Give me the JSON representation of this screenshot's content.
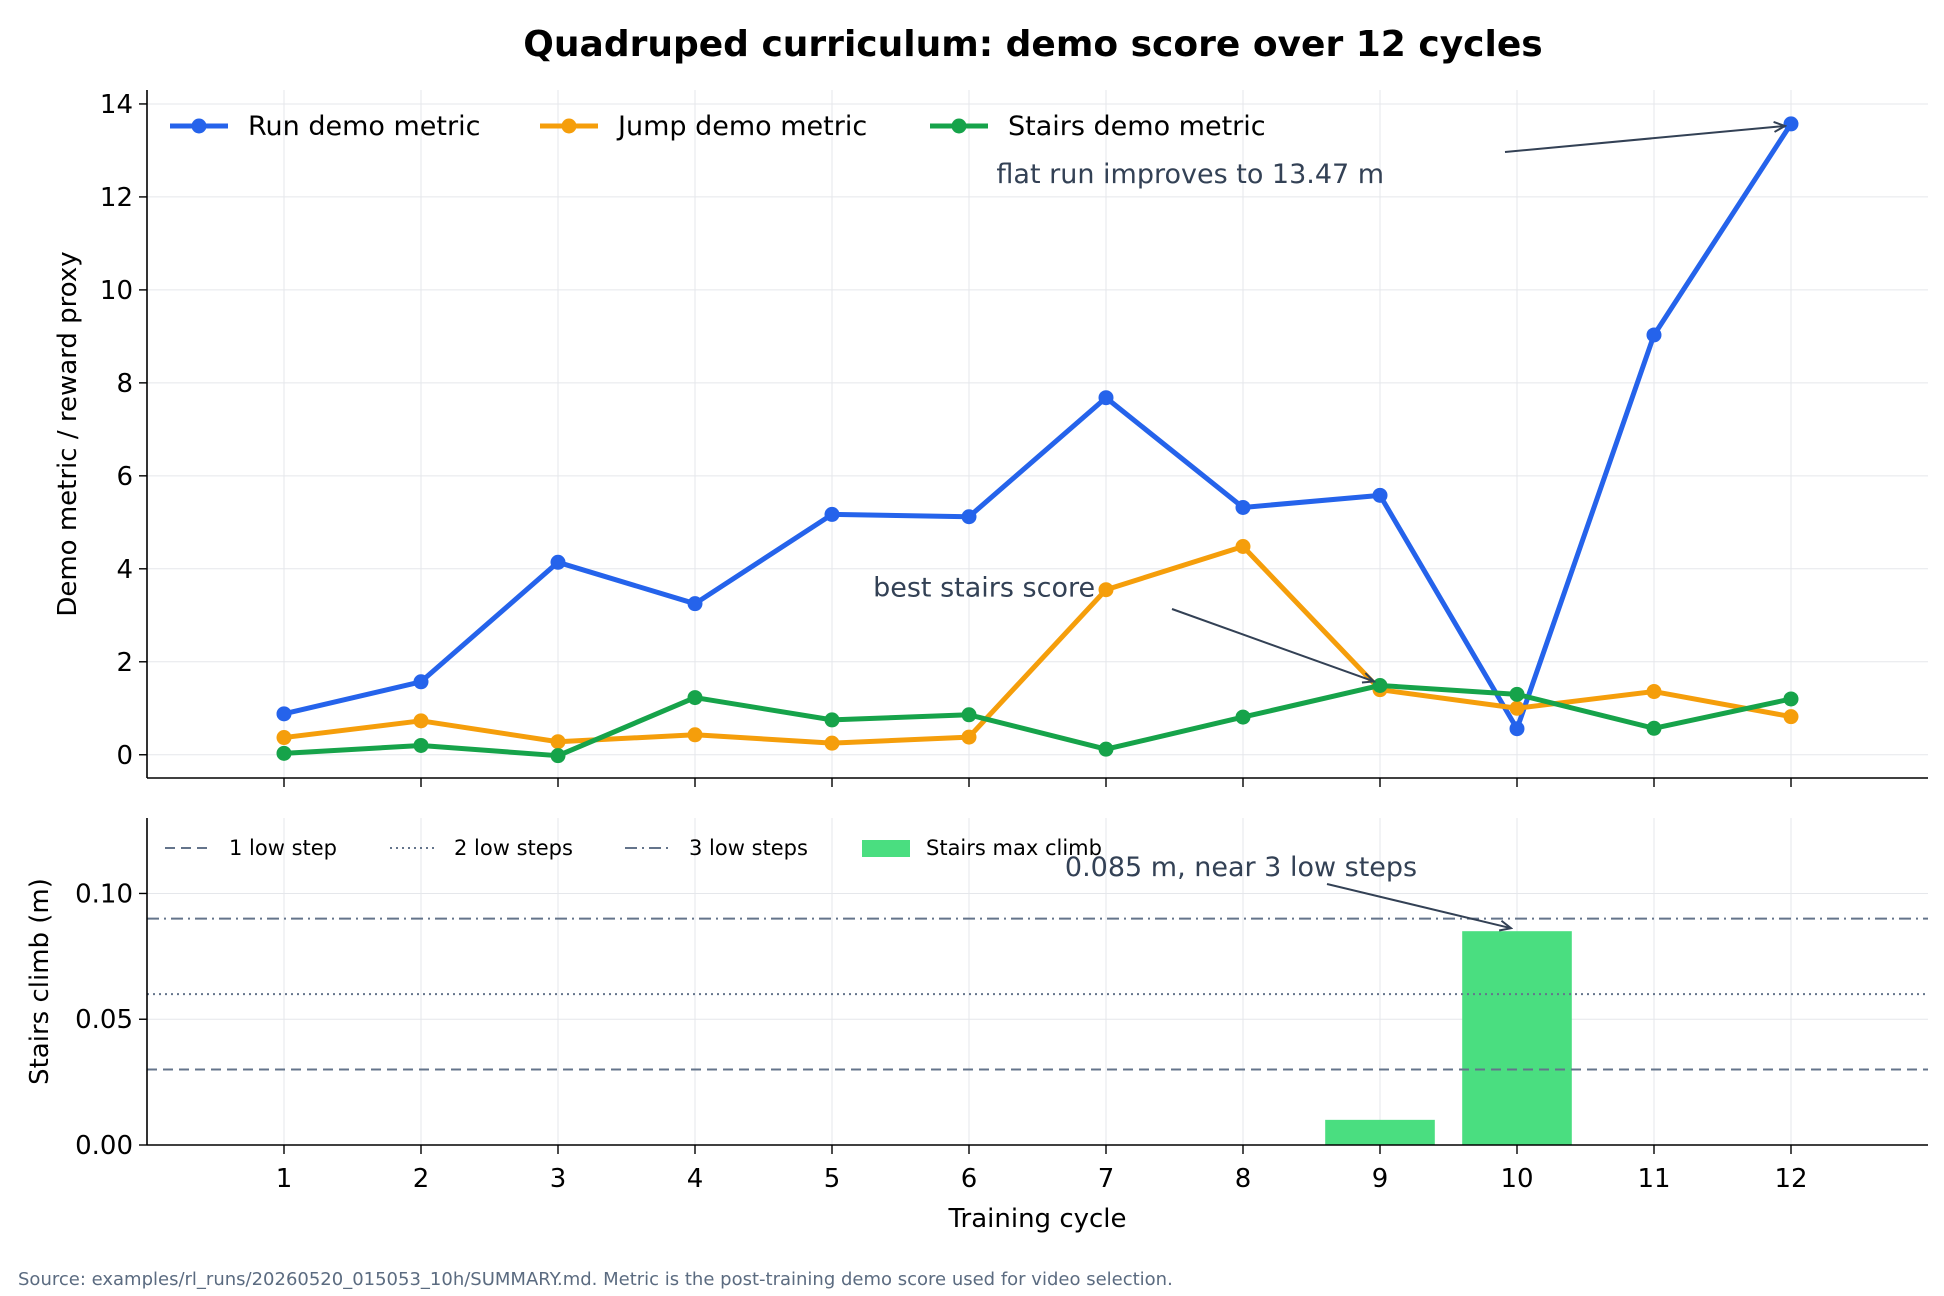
{
  "title": "Quadruped curriculum: demo score over 12 cycles",
  "source_note": "Source: examples/rl_runs/20260520_015053_10h/SUMMARY.md. Metric is the post-training demo score used for video selection.",
  "colors": {
    "run": "#2563eb",
    "jump": "#f59e0b",
    "stairs": "#16a34a",
    "bar": "#4ade80",
    "ref": "#64748b",
    "annotation": "#334155"
  },
  "chart_data": [
    {
      "type": "line",
      "ylabel": "Demo metric / reward proxy",
      "xlabel": "",
      "x": [
        1,
        2,
        3,
        4,
        5,
        6,
        7,
        8,
        9,
        10,
        11,
        12
      ],
      "xlim": [
        0,
        13
      ],
      "ylim": [
        -0.5,
        14.3
      ],
      "yticks": [
        "0",
        "2",
        "4",
        "6",
        "8",
        "10",
        "12",
        "14"
      ],
      "grid": true,
      "legend_position": "top-left",
      "series": [
        {
          "name": "Run demo metric",
          "values": [
            0.88,
            1.57,
            4.14,
            3.25,
            5.17,
            5.12,
            7.68,
            5.32,
            5.58,
            0.56,
            9.03,
            13.57
          ]
        },
        {
          "name": "Jump demo metric",
          "values": [
            0.37,
            0.73,
            0.28,
            0.43,
            0.25,
            0.38,
            3.55,
            4.48,
            1.4,
            1.0,
            1.36,
            0.82
          ]
        },
        {
          "name": "Stairs demo metric",
          "values": [
            0.03,
            0.2,
            -0.02,
            1.23,
            0.75,
            0.86,
            0.12,
            0.81,
            1.49,
            1.3,
            0.57,
            1.2
          ]
        }
      ],
      "annotations": [
        {
          "text": "flat run improves to 13.47 m",
          "target_x": 12,
          "target_y": 13.57,
          "text_x": 6.2,
          "text_y": 12.3
        },
        {
          "text": "best stairs score",
          "target_x": 9,
          "target_y": 1.49,
          "text_x": 5.3,
          "text_y": 3.4
        }
      ]
    },
    {
      "type": "bar",
      "ylabel": "Stairs climb (m)",
      "xlabel": "Training cycle",
      "categories": [
        "1",
        "2",
        "3",
        "4",
        "5",
        "6",
        "7",
        "8",
        "9",
        "10",
        "11",
        "12"
      ],
      "xlim": [
        0,
        13
      ],
      "ylim": [
        0,
        0.13
      ],
      "yticks": [
        "0.00",
        "0.05",
        "0.10"
      ],
      "grid": true,
      "legend_position": "top-left",
      "series": [
        {
          "name": "Stairs max climb",
          "values": [
            0,
            0,
            0,
            0,
            0,
            0,
            0,
            0,
            0.01,
            0.085,
            0,
            0
          ]
        }
      ],
      "reference_lines": [
        {
          "name": "1 low step",
          "value": 0.03,
          "style": "dashed"
        },
        {
          "name": "2 low steps",
          "value": 0.06,
          "style": "dotted"
        },
        {
          "name": "3 low steps",
          "value": 0.09,
          "style": "dashdot"
        }
      ],
      "annotations": [
        {
          "text": "0.085 m, near 3 low steps",
          "target_x": 10,
          "target_y": 0.085,
          "text_x": 6.7,
          "text_y": 0.107
        }
      ]
    }
  ]
}
